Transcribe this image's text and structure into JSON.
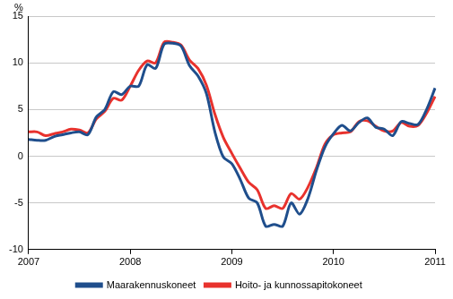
{
  "chart_data": {
    "type": "line",
    "y_label": "%",
    "categories": [
      "2007",
      null,
      null,
      null,
      null,
      null,
      null,
      null,
      null,
      null,
      null,
      null,
      "2008",
      null,
      null,
      null,
      null,
      null,
      null,
      null,
      null,
      null,
      null,
      null,
      "2009",
      null,
      null,
      null,
      null,
      null,
      null,
      null,
      null,
      null,
      null,
      null,
      "2010",
      null,
      null,
      null,
      null,
      null,
      null,
      null,
      null,
      null,
      null,
      null,
      "2011"
    ],
    "series": [
      {
        "name": "Maarakennuskoneet",
        "color": "#1f4e8c",
        "values": [
          1.8,
          1.7,
          1.7,
          2.1,
          2.3,
          2.5,
          2.6,
          2.3,
          4.2,
          5.0,
          6.9,
          6.6,
          7.5,
          7.5,
          9.8,
          9.4,
          12.0,
          12.1,
          11.8,
          9.7,
          8.6,
          6.7,
          2.6,
          -0.1,
          -0.8,
          -2.5,
          -4.5,
          -5.0,
          -7.5,
          -7.3,
          -7.5,
          -5.0,
          -6.2,
          -4.5,
          -1.5,
          1.0,
          2.4,
          3.3,
          2.7,
          3.6,
          4.1,
          3.1,
          2.9,
          2.2,
          3.7,
          3.5,
          3.4,
          5.0,
          7.3
        ]
      },
      {
        "name": "Hoito- ja kunnossapitokoneet",
        "color": "#e8322d",
        "values": [
          2.6,
          2.6,
          2.2,
          2.4,
          2.6,
          2.9,
          2.8,
          2.5,
          4.0,
          4.8,
          6.2,
          6.0,
          7.5,
          9.2,
          10.2,
          10.0,
          12.2,
          12.2,
          11.9,
          10.3,
          9.4,
          7.6,
          4.5,
          2.0,
          0.3,
          -1.3,
          -2.8,
          -3.6,
          -5.6,
          -5.3,
          -5.6,
          -4.0,
          -4.6,
          -3.3,
          -1.2,
          1.3,
          2.3,
          2.5,
          2.6,
          3.7,
          3.8,
          3.2,
          2.7,
          2.7,
          3.6,
          3.2,
          3.3,
          4.6,
          6.4
        ]
      }
    ],
    "ylim": [
      -10,
      15
    ],
    "yticks": [
      -10,
      -5,
      0,
      5,
      10,
      15
    ],
    "grid": true,
    "legend": "bottom"
  }
}
